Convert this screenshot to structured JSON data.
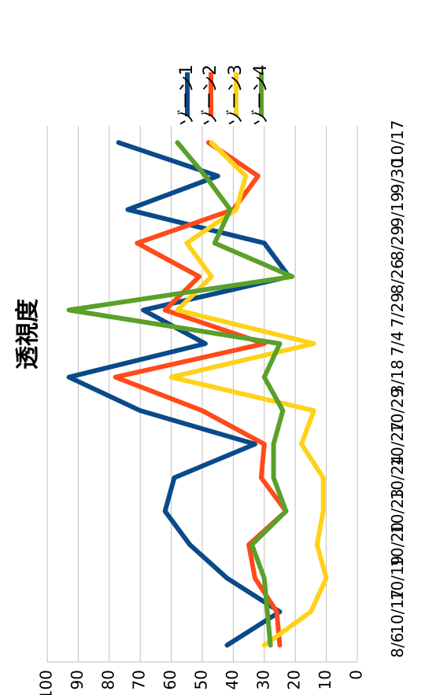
{
  "chart_data": {
    "type": "line",
    "title": "透視度",
    "categories": [
      "8/6",
      "10/17",
      "10/19",
      "10/20",
      "10/23",
      "10/24",
      "10/27",
      "10/29",
      "3/18",
      "7/4",
      "7/29",
      "8/26",
      "8/29",
      "9/19",
      "9/30",
      "10/17"
    ],
    "ylim": [
      0,
      100
    ],
    "yticks": [
      0,
      10,
      20,
      30,
      40,
      50,
      60,
      70,
      80,
      90,
      100
    ],
    "grid": true,
    "legend_position": "top",
    "series": [
      {
        "name": "ゾーン1",
        "color": "#0a4a8a",
        "values": [
          42,
          25,
          42,
          54,
          62,
          59,
          33,
          70,
          93,
          49,
          69,
          22,
          30,
          74,
          45,
          77
        ]
      },
      {
        "name": "ゾーン2",
        "color": "#ff4a1a",
        "values": [
          25,
          26,
          33,
          35,
          23,
          31,
          30,
          50,
          78,
          30,
          62,
          51,
          71,
          40,
          32,
          48
        ]
      },
      {
        "name": "ゾーン3",
        "color": "#ffd21a",
        "values": [
          30,
          15,
          10,
          13,
          11,
          11,
          18,
          14,
          60,
          14,
          58,
          47,
          55,
          39,
          36,
          47
        ]
      },
      {
        "name": "ゾーン4",
        "color": "#5aa02a",
        "values": [
          28,
          29,
          30,
          34,
          23,
          27,
          27,
          24,
          30,
          25,
          93,
          21,
          46,
          41,
          49,
          58
        ]
      }
    ]
  }
}
